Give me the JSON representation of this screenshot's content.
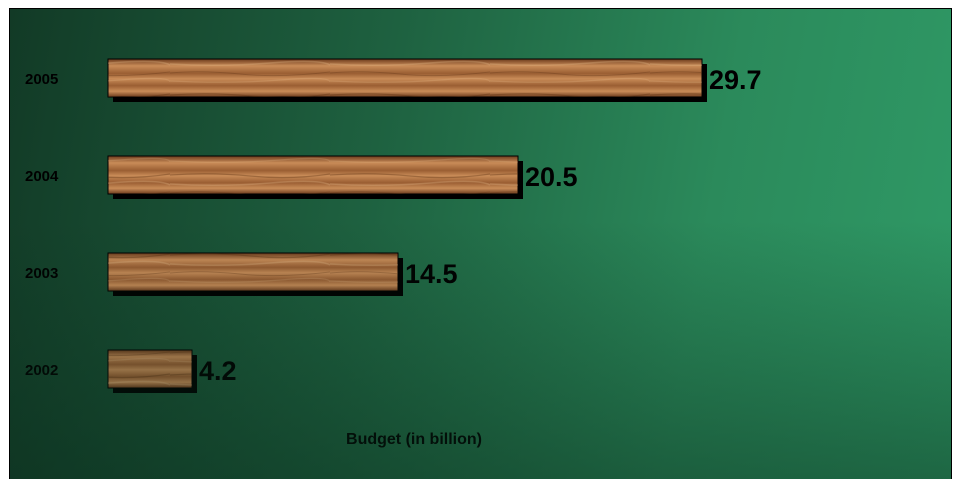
{
  "chart_data": {
    "type": "bar",
    "orientation": "horizontal",
    "categories": [
      "2005",
      "2004",
      "2003",
      "2002"
    ],
    "values": [
      29.7,
      20.5,
      14.5,
      4.2
    ],
    "data_labels": [
      "29.7",
      "20.5",
      "14.5",
      "4.2"
    ],
    "title": "",
    "xlabel": "Budget (in billion)",
    "ylabel": "",
    "xlim": [
      0,
      30
    ],
    "grid": false,
    "legend": "none",
    "bar_fill": "wood texture",
    "colors": {
      "background_dark": "#123a26",
      "background_light": "#2f9a66",
      "bar_base": "#9a5e33",
      "bar_light": "#c98c58",
      "bar_dark": "#6b3a1c",
      "shadow": "#000000"
    }
  }
}
